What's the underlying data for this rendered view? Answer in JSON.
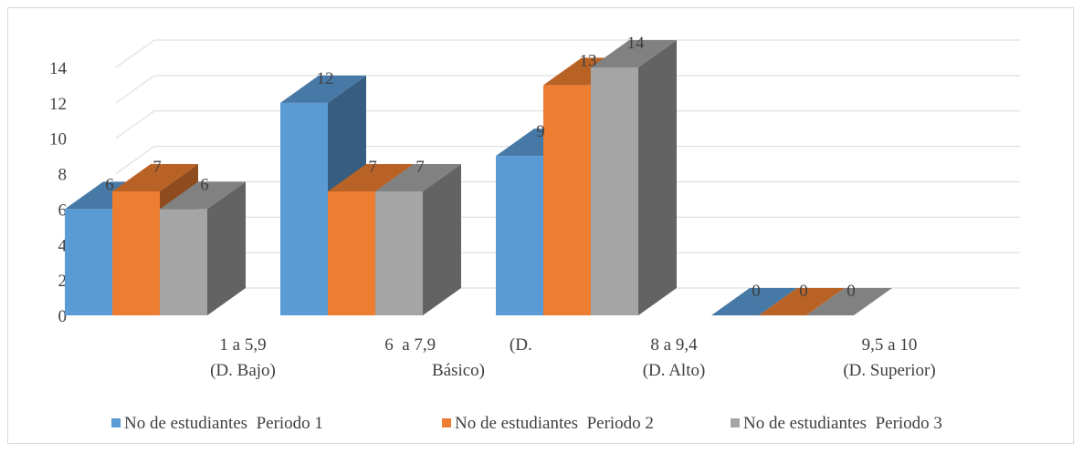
{
  "chart_data": {
    "type": "bar",
    "style": "3d-clustered-column",
    "categories": [
      [
        "1 a 5,9",
        "(D. Bajo)"
      ],
      [
        "6  a 7,9                 (D.",
        "Básico)"
      ],
      [
        "8 a 9,4",
        "(D. Alto)"
      ],
      [
        "9,5 a 10",
        "(D. Superior)"
      ]
    ],
    "series": [
      {
        "name": "No de estudiantes  Periodo 1",
        "values": [
          6,
          12,
          9,
          0
        ],
        "color": "#5b9bd5"
      },
      {
        "name": "No de estudiantes  Periodo 2",
        "values": [
          7,
          7,
          13,
          0
        ],
        "color": "#ed7d31"
      },
      {
        "name": "No de estudiantes  Periodo 3",
        "values": [
          6,
          7,
          14,
          0
        ],
        "color": "#a5a5a5"
      }
    ],
    "y_ticks": [
      "0",
      "2",
      "4",
      "6",
      "8",
      "10",
      "12",
      "14"
    ],
    "ylim": [
      0,
      14
    ],
    "data_labels": true,
    "grid": true,
    "legend": "bottom"
  }
}
